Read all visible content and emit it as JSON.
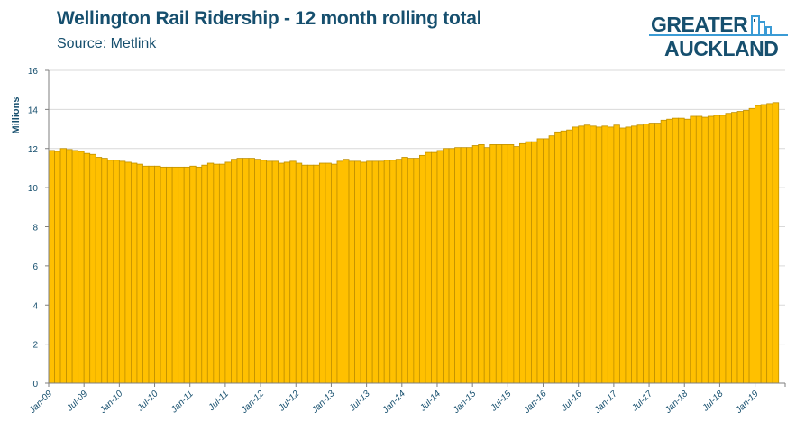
{
  "header": {
    "title": "Wellington Rail Ridership - 12 month rolling total",
    "subtitle": "Source: Metlink"
  },
  "logo": {
    "line1": "GREATER",
    "line2": "AUCKLAND"
  },
  "colors": {
    "bar_fill": "#FFC000",
    "bar_stroke": "#C09000",
    "text": "#164f6e",
    "grid": "#d9d9d9",
    "axis": "#7f7f7f"
  },
  "chart_data": {
    "type": "bar",
    "title": "Wellington Rail Ridership - 12 month rolling total",
    "xlabel": "",
    "ylabel": "Millions",
    "ylim": [
      0,
      16
    ],
    "yticks": [
      0,
      2,
      4,
      6,
      8,
      10,
      12,
      14,
      16
    ],
    "grid": true,
    "x_start": "Jan-09",
    "x_end": "Apr-19",
    "x_interval": "monthly",
    "tick_labels": [
      "Jan-09",
      "Jul-09",
      "Jan-10",
      "Jul-10",
      "Jan-11",
      "Jul-11",
      "Jan-12",
      "Jul-12",
      "Jan-13",
      "Jul-13",
      "Jan-14",
      "Jul-14",
      "Jan-15",
      "Jul-15",
      "Jan-16",
      "Jul-16",
      "Jan-17",
      "Jul-17",
      "Jan-18",
      "Jul-18",
      "Jan-19"
    ],
    "values": [
      11.9,
      11.85,
      12.0,
      11.95,
      11.9,
      11.85,
      11.75,
      11.7,
      11.55,
      11.5,
      11.4,
      11.4,
      11.35,
      11.3,
      11.25,
      11.2,
      11.1,
      11.1,
      11.1,
      11.05,
      11.05,
      11.05,
      11.05,
      11.05,
      11.1,
      11.05,
      11.15,
      11.25,
      11.2,
      11.2,
      11.3,
      11.45,
      11.5,
      11.5,
      11.5,
      11.45,
      11.4,
      11.35,
      11.35,
      11.25,
      11.3,
      11.35,
      11.25,
      11.15,
      11.15,
      11.15,
      11.25,
      11.25,
      11.2,
      11.35,
      11.45,
      11.35,
      11.35,
      11.3,
      11.35,
      11.35,
      11.35,
      11.4,
      11.4,
      11.45,
      11.55,
      11.5,
      11.5,
      11.65,
      11.8,
      11.8,
      11.9,
      12.0,
      12.0,
      12.05,
      12.05,
      12.05,
      12.15,
      12.2,
      12.05,
      12.2,
      12.2,
      12.2,
      12.2,
      12.1,
      12.25,
      12.35,
      12.35,
      12.5,
      12.5,
      12.65,
      12.85,
      12.9,
      12.95,
      13.1,
      13.15,
      13.2,
      13.15,
      13.1,
      13.15,
      13.1,
      13.2,
      13.05,
      13.1,
      13.15,
      13.2,
      13.25,
      13.3,
      13.3,
      13.45,
      13.5,
      13.55,
      13.55,
      13.5,
      13.65,
      13.65,
      13.6,
      13.65,
      13.7,
      13.7,
      13.8,
      13.85,
      13.9,
      13.95,
      14.05,
      14.2,
      14.25,
      14.3,
      14.35
    ]
  }
}
